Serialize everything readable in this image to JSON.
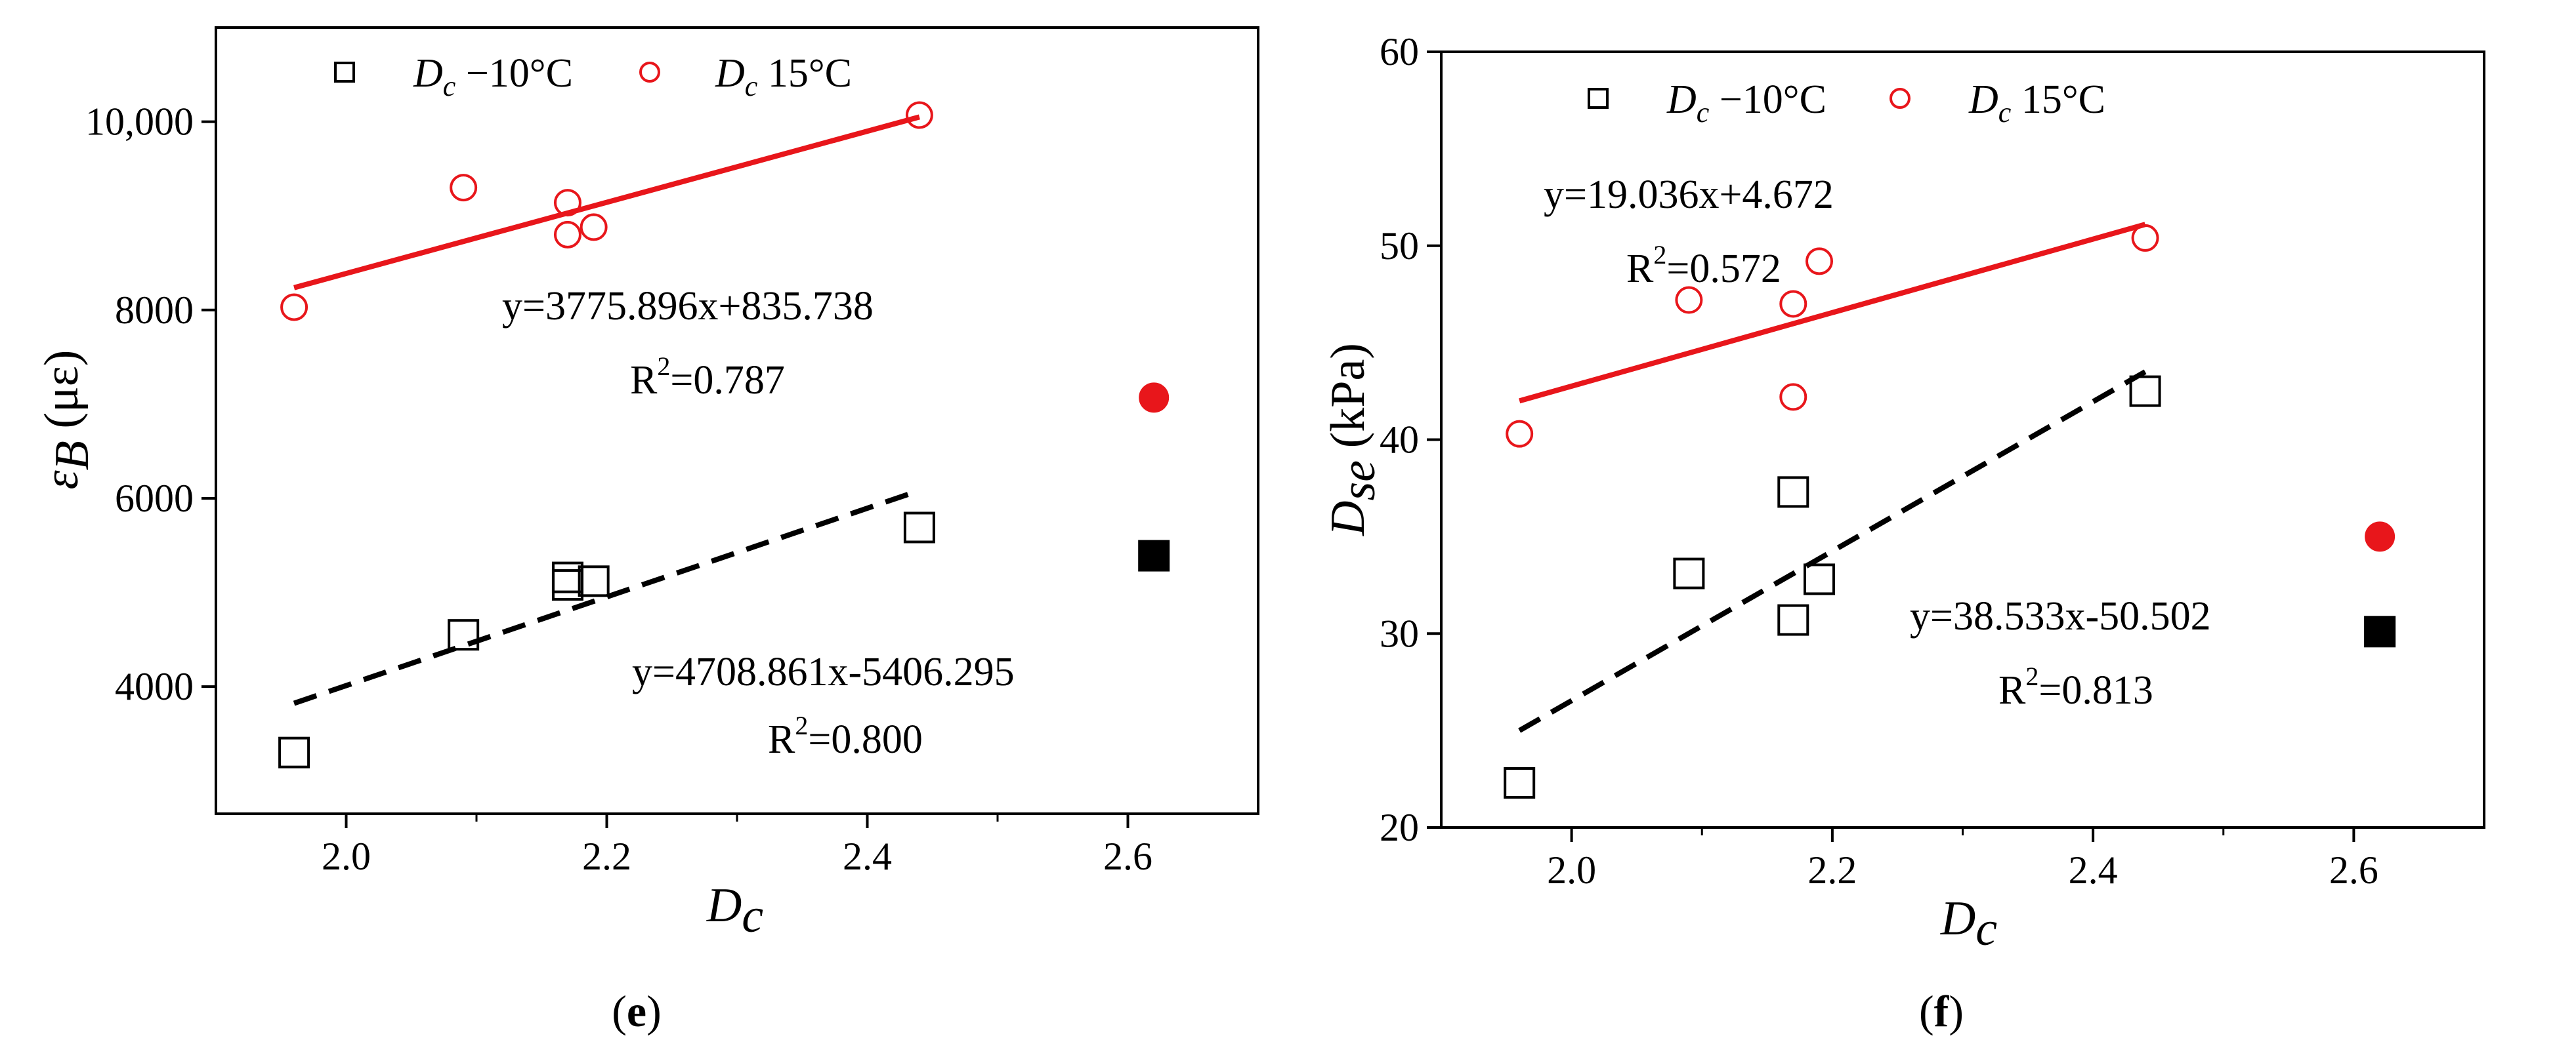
{
  "chart_data": [
    {
      "type": "scatter",
      "panel_label": {
        "pre": "(",
        "letter": "e",
        "post": ")"
      },
      "xlabel": {
        "main": "D",
        "sub": "c"
      },
      "ylabel": {
        "main": "ε",
        "sub": "B",
        "unit": " (με)"
      },
      "xlim": [
        1.9,
        2.7
      ],
      "ylim": [
        2650,
        11000
      ],
      "x_ticks": [
        2.0,
        2.2,
        2.4,
        2.6
      ],
      "x_tick_labels": [
        "2.0",
        "2.2",
        "2.4",
        "2.6"
      ],
      "y_ticks": [
        4000,
        6000,
        8000,
        10000
      ],
      "y_tick_labels": [
        "4000",
        "6000",
        "8000",
        "10,000"
      ],
      "legend": [
        {
          "main": "D",
          "sub": "c",
          "rest": " −10°C",
          "marker": "open-square",
          "color": "#000000"
        },
        {
          "main": "D",
          "sub": "c",
          "rest": " 15°C",
          "marker": "open-circle",
          "color": "#e8161b"
        }
      ],
      "series": [
        {
          "name": "Dc −10°C",
          "marker": "open-square",
          "color": "#000000",
          "x": [
            1.96,
            2.09,
            2.17,
            2.17,
            2.19,
            2.44
          ],
          "y": [
            3300,
            4550,
            5160,
            5080,
            5120,
            5690
          ],
          "fit": {
            "x": [
              1.96,
              2.44
            ],
            "y": [
              3823,
              6083
            ],
            "style": "dashed"
          }
        },
        {
          "name": "Dc 15°C",
          "marker": "open-circle",
          "color": "#e8161b",
          "x": [
            1.96,
            2.09,
            2.17,
            2.17,
            2.19,
            2.44
          ],
          "y": [
            8030,
            9300,
            9140,
            8800,
            8880,
            10070
          ],
          "fit": {
            "x": [
              1.96,
              2.44
            ],
            "y": [
              8237,
              10050
            ],
            "style": "solid"
          }
        }
      ],
      "extra_points": [
        {
          "x": 2.62,
          "y": 5390,
          "marker": "filled-square",
          "color": "#000000"
        },
        {
          "x": 2.62,
          "y": 7070,
          "marker": "filled-circle",
          "color": "#e8161b"
        }
      ],
      "annotations": [
        {
          "eq": "y=3775.896x+835.738",
          "r2_value": "=0.787"
        },
        {
          "eq": "y=4708.861x-5406.295",
          "r2_value": "=0.800"
        }
      ],
      "r2_prefix": "R",
      "r2_sup": "2"
    },
    {
      "type": "scatter",
      "panel_label": {
        "pre": "(",
        "letter": "f",
        "post": ")"
      },
      "xlabel": {
        "main": "D",
        "sub": "c"
      },
      "ylabel": {
        "main": "D",
        "sub": "se",
        "unit": " (kPa)"
      },
      "xlim": [
        1.9,
        2.7
      ],
      "ylim": [
        20,
        60
      ],
      "x_ticks": [
        2.0,
        2.2,
        2.4,
        2.6
      ],
      "x_tick_labels": [
        "2.0",
        "2.2",
        "2.4",
        "2.6"
      ],
      "y_ticks": [
        20,
        30,
        40,
        50,
        60
      ],
      "y_tick_labels": [
        "20",
        "30",
        "40",
        "50",
        "60"
      ],
      "legend": [
        {
          "main": "D",
          "sub": "c",
          "rest": " −10°C",
          "marker": "open-square",
          "color": "#000000"
        },
        {
          "main": "D",
          "sub": "c",
          "rest": " 15°C",
          "marker": "open-circle",
          "color": "#e8161b"
        }
      ],
      "series": [
        {
          "name": "Dc −10°C",
          "marker": "open-square",
          "color": "#000000",
          "x": [
            1.96,
            2.09,
            2.17,
            2.17,
            2.19,
            2.44
          ],
          "y": [
            22.3,
            33.1,
            37.3,
            30.7,
            32.8,
            42.5
          ],
          "fit": {
            "x": [
              1.96,
              2.44
            ],
            "y": [
              25.0,
              43.5
            ],
            "style": "dashed"
          }
        },
        {
          "name": "Dc 15°C",
          "marker": "open-circle",
          "color": "#e8161b",
          "x": [
            1.96,
            2.09,
            2.17,
            2.17,
            2.19,
            2.44
          ],
          "y": [
            40.3,
            47.2,
            47.0,
            42.2,
            49.2,
            50.4
          ],
          "fit": {
            "x": [
              1.96,
              2.44
            ],
            "y": [
              42.0,
              51.1
            ],
            "style": "solid"
          }
        }
      ],
      "extra_points": [
        {
          "x": 2.62,
          "y": 30.1,
          "marker": "filled-square",
          "color": "#000000"
        },
        {
          "x": 2.62,
          "y": 35.0,
          "marker": "filled-circle",
          "color": "#e8161b"
        }
      ],
      "annotations": [
        {
          "eq": "y=19.036x+4.672",
          "r2_value": "=0.572"
        },
        {
          "eq": "y=38.533x-50.502",
          "r2_value": "=0.813"
        }
      ],
      "r2_prefix": "R",
      "r2_sup": "2"
    }
  ]
}
